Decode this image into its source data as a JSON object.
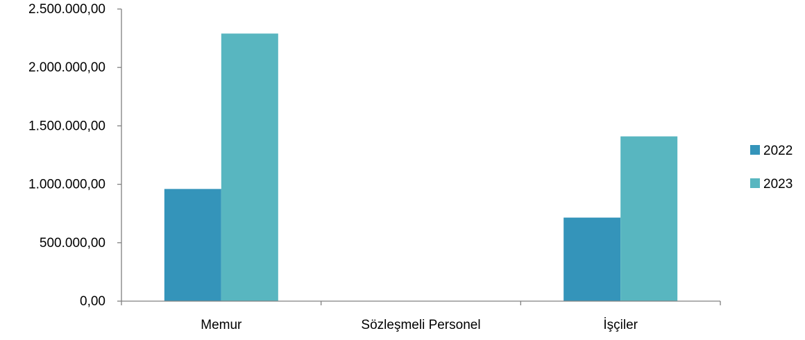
{
  "chart_data": {
    "type": "bar",
    "title": "",
    "xlabel": "",
    "ylabel": "",
    "categories": [
      "Memur",
      "Sözleşmeli Personel",
      "İşçiler"
    ],
    "series": [
      {
        "name": "2022",
        "color": "#3494BA",
        "values": [
          960000,
          0,
          715000
        ]
      },
      {
        "name": "2023",
        "color": "#58B6C0",
        "values": [
          2290000,
          0,
          1410000
        ]
      }
    ],
    "ylim": [
      0,
      2500000
    ],
    "yticks": [
      {
        "value": 0,
        "label": "0,00"
      },
      {
        "value": 500000,
        "label": "500.000,00"
      },
      {
        "value": 1000000,
        "label": "1.000.000,00"
      },
      {
        "value": 1500000,
        "label": "1.500.000,00"
      },
      {
        "value": 2000000,
        "label": "2.000.000,00"
      },
      {
        "value": 2500000,
        "label": "2.500.000,00"
      }
    ],
    "grid": false,
    "legend_position": "right"
  }
}
